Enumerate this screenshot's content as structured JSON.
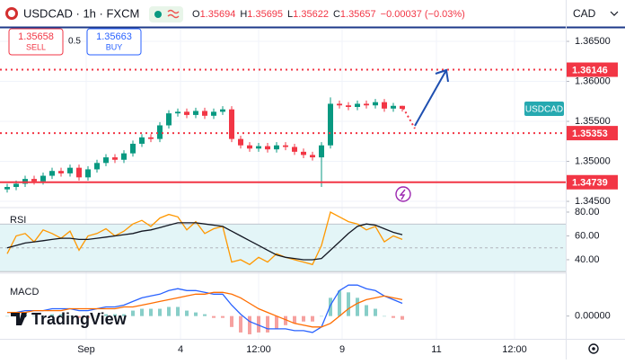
{
  "toolbar": {
    "symbol": "USDCAD · 1h · FXCM",
    "ohlc": [
      {
        "label": "O",
        "value": "1.35694"
      },
      {
        "label": "H",
        "value": "1.35695"
      },
      {
        "label": "L",
        "value": "1.35622"
      },
      {
        "label": "C",
        "value": "1.35657"
      }
    ],
    "change": "−0.00037 (−0.03%)",
    "currency": "CAD",
    "sell_price": "1.35658",
    "sell": "SELL",
    "spread": "0.5",
    "buy_price": "1.35663",
    "buy": "BUY"
  },
  "watermark": "TradingView",
  "chart_data": [
    {
      "type": "candlestick",
      "xlim": [
        -0.8,
        62.2
      ],
      "ylim": [
        1.34433,
        1.3668
      ],
      "yticks": [
        {
          "value": 1.345,
          "label": "1.34500"
        },
        {
          "value": 1.35,
          "label": "1.35000"
        },
        {
          "value": 1.355,
          "label": "1.35500"
        },
        {
          "value": 1.36,
          "label": "1.36000"
        },
        {
          "value": 1.365,
          "label": "1.36500"
        }
      ],
      "xticks": [
        {
          "value": 8.8,
          "label": "Sep"
        },
        {
          "value": 19.3,
          "label": "4"
        },
        {
          "value": 28,
          "label": "12:00"
        },
        {
          "value": 37.3,
          "label": "9"
        },
        {
          "value": 47.8,
          "label": "11"
        },
        {
          "value": 56.5,
          "label": "12:00"
        }
      ],
      "grid": true,
      "up_color": "#089981",
      "down_color": "#f23645",
      "series": [
        {
          "name": "USDCAD",
          "color": "#26a9b0",
          "open": [
            1.3465,
            1.3468,
            1.3472,
            1.3478,
            1.3475,
            1.3482,
            1.3488,
            1.3485,
            1.3492,
            1.348,
            1.349,
            1.3498,
            1.3505,
            1.3502,
            1.351,
            1.3522,
            1.353,
            1.3528,
            1.3545,
            1.356,
            1.3562,
            1.3558,
            1.3563,
            1.3557,
            1.3562,
            1.3565,
            1.3528,
            1.352,
            1.3516,
            1.3519,
            1.3515,
            1.352,
            1.3518,
            1.3512,
            1.3508,
            1.3505,
            1.352,
            1.3572,
            1.357,
            1.3568,
            1.3572,
            1.357,
            1.3574,
            1.3566,
            1.35694
          ],
          "high": [
            1.3472,
            1.3476,
            1.3482,
            1.3482,
            1.3486,
            1.3492,
            1.3492,
            1.3496,
            1.3496,
            1.3494,
            1.3502,
            1.3509,
            1.3509,
            1.3514,
            1.3526,
            1.3534,
            1.3534,
            1.3549,
            1.3564,
            1.3566,
            1.3566,
            1.3567,
            1.3567,
            1.3566,
            1.3569,
            1.3569,
            1.3532,
            1.3524,
            1.3523,
            1.3523,
            1.3524,
            1.3524,
            1.3522,
            1.3516,
            1.3512,
            1.3524,
            1.358,
            1.3576,
            1.3574,
            1.3576,
            1.3576,
            1.3578,
            1.3578,
            1.3573,
            1.35695
          ],
          "low": [
            1.3461,
            1.3464,
            1.3468,
            1.3471,
            1.3471,
            1.3478,
            1.3481,
            1.3481,
            1.3476,
            1.3476,
            1.3486,
            1.3494,
            1.3498,
            1.3498,
            1.3506,
            1.3518,
            1.3524,
            1.3524,
            1.3541,
            1.3556,
            1.3554,
            1.3554,
            1.3553,
            1.3553,
            1.3558,
            1.3524,
            1.3516,
            1.3512,
            1.3512,
            1.3511,
            1.3511,
            1.3514,
            1.3508,
            1.3504,
            1.3501,
            1.3468,
            1.3516,
            1.3566,
            1.3564,
            1.3564,
            1.3566,
            1.3566,
            1.3562,
            1.3562,
            1.35622
          ],
          "close": [
            1.3468,
            1.3472,
            1.3478,
            1.3475,
            1.3482,
            1.3488,
            1.3485,
            1.3492,
            1.348,
            1.349,
            1.3498,
            1.3505,
            1.3502,
            1.351,
            1.3522,
            1.353,
            1.3528,
            1.3545,
            1.356,
            1.3562,
            1.3558,
            1.3563,
            1.3557,
            1.3562,
            1.3565,
            1.3528,
            1.352,
            1.3516,
            1.3519,
            1.3515,
            1.352,
            1.3518,
            1.3512,
            1.3508,
            1.3505,
            1.352,
            1.3572,
            1.357,
            1.3568,
            1.3572,
            1.357,
            1.3574,
            1.3566,
            1.35694,
            1.35657
          ]
        }
      ],
      "levels": [
        {
          "value": 1.36146,
          "style": "dotted",
          "color": "#f23645"
        },
        {
          "value": 1.35353,
          "style": "dotted",
          "color": "#f23645"
        },
        {
          "value": 1.34739,
          "style": "solid",
          "color": "#f23645"
        }
      ]
    },
    {
      "type": "line",
      "title": "RSI",
      "xlim": [
        -0.8,
        62.2
      ],
      "ylim": [
        29.4,
        83
      ],
      "yticks": [
        {
          "value": 40,
          "label": "40.00"
        },
        {
          "value": 60,
          "label": "60.00"
        },
        {
          "value": 80,
          "label": "80.00"
        }
      ],
      "band": [
        30,
        70
      ],
      "midline": 50,
      "series": [
        {
          "color": "#ff9800",
          "values": [
            45,
            60,
            62,
            55,
            65,
            62,
            58,
            64,
            48,
            60,
            62,
            66,
            60,
            64,
            70,
            73,
            68,
            75,
            78,
            76,
            65,
            72,
            62,
            66,
            68,
            38,
            40,
            36,
            42,
            38,
            45,
            42,
            40,
            38,
            36,
            52,
            80,
            76,
            72,
            70,
            65,
            68,
            55,
            60,
            57
          ]
        },
        {
          "color": "#131722",
          "values": [
            50,
            52,
            54,
            55,
            56,
            57,
            58,
            58,
            57,
            57,
            58,
            59,
            60,
            61,
            62,
            64,
            65,
            67,
            69,
            71,
            71,
            71,
            70,
            69,
            68,
            64,
            60,
            56,
            52,
            48,
            44,
            42,
            41,
            40,
            40,
            41,
            48,
            55,
            62,
            68,
            70,
            69,
            66,
            63,
            61
          ]
        }
      ]
    },
    {
      "type": "line",
      "title": "MACD",
      "xlim": [
        -0.8,
        62.2
      ],
      "ylim": [
        -0.0012,
        0.0023
      ],
      "yticks": [
        {
          "value": 0,
          "label": "0.00000"
        }
      ],
      "histogram": {
        "up_color": "#26a69a",
        "down_color": "#ef5350",
        "values": [
          0,
          0,
          0.0001,
          0,
          0,
          0.0001,
          0.0001,
          0,
          -0.0001,
          -0.0001,
          0,
          0.0001,
          0.0001,
          0.0001,
          0.0003,
          0.0004,
          0.0004,
          0.0004,
          0.0005,
          0.0005,
          0.0003,
          0.0002,
          0.0001,
          -0.0001,
          -0.0001,
          -0.0006,
          -0.0009,
          -0.001,
          -0.0009,
          -0.0009,
          -0.0007,
          -0.0005,
          -0.0004,
          -0.0003,
          -0.0003,
          0,
          0.001,
          0.0014,
          0.0013,
          0.001,
          0.0006,
          0.0004,
          0,
          -0.0001,
          -0.0002
        ]
      },
      "series": [
        {
          "color": "#2962ff",
          "values": [
            0.0002,
            0.0002,
            0.0003,
            0.0003,
            0.0003,
            0.0004,
            0.0004,
            0.0004,
            0.0003,
            0.0003,
            0.0004,
            0.0005,
            0.0005,
            0.0006,
            0.0008,
            0.001,
            0.0011,
            0.0012,
            0.0014,
            0.0015,
            0.0014,
            0.0014,
            0.0013,
            0.0012,
            0.0012,
            0.0006,
            0.0001,
            -0.0003,
            -0.0005,
            -0.0007,
            -0.0007,
            -0.0007,
            -0.0008,
            -0.0008,
            -0.0009,
            -0.0006,
            0.0006,
            0.0014,
            0.0017,
            0.0017,
            0.0015,
            0.0014,
            0.0011,
            0.0009,
            0.0007
          ]
        },
        {
          "color": "#ff6d00",
          "values": [
            0.0002,
            0.0002,
            0.0002,
            0.0003,
            0.0003,
            0.0003,
            0.0003,
            0.0004,
            0.0004,
            0.0004,
            0.0004,
            0.0004,
            0.0004,
            0.0005,
            0.0005,
            0.0006,
            0.0007,
            0.0008,
            0.0009,
            0.001,
            0.0011,
            0.0012,
            0.0012,
            0.0013,
            0.0013,
            0.0012,
            0.001,
            0.0007,
            0.0004,
            0.0002,
            0.0,
            -0.0002,
            -0.0004,
            -0.0005,
            -0.0006,
            -0.0006,
            -0.0004,
            0.0,
            0.0004,
            0.0007,
            0.0009,
            0.001,
            0.0011,
            0.001,
            0.0009
          ]
        }
      ]
    }
  ]
}
